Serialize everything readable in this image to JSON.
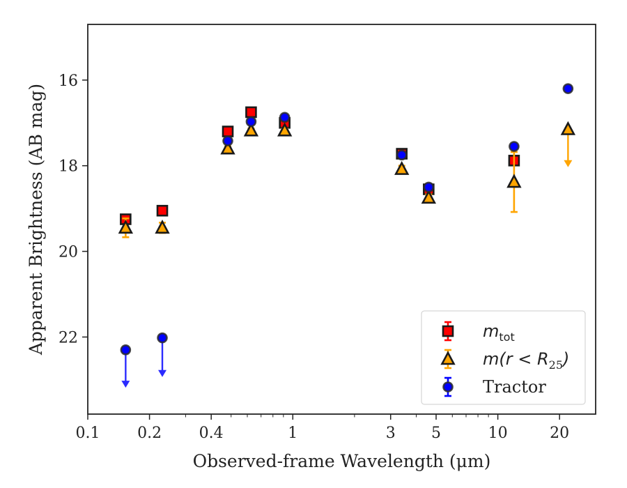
{
  "chart_data": {
    "type": "scatter",
    "xlabel": "Observed-frame Wavelength (μm)",
    "ylabel": "Apparent Brightness (AB mag)",
    "xscale": "log",
    "xlim": [
      0.1,
      30
    ],
    "ylim": [
      23.8,
      14.7
    ],
    "y_inverted": true,
    "x_ticks": [
      {
        "value": 0.1,
        "label": "0.1"
      },
      {
        "value": 0.2,
        "label": "0.2"
      },
      {
        "value": 0.4,
        "label": "0.4"
      },
      {
        "value": 1,
        "label": "1"
      },
      {
        "value": 3,
        "label": "3"
      },
      {
        "value": 5,
        "label": "5"
      },
      {
        "value": 10,
        "label": "10"
      },
      {
        "value": 20,
        "label": "20"
      }
    ],
    "y_ticks": [
      {
        "value": 16,
        "label": "16"
      },
      {
        "value": 18,
        "label": "18"
      },
      {
        "value": 20,
        "label": "20"
      },
      {
        "value": 22,
        "label": "22"
      }
    ],
    "grid": false,
    "legend_position": "lower-right",
    "series": [
      {
        "id": "mtot",
        "legend_label": "m",
        "legend_sub": "tot",
        "marker": "square",
        "color": "#ff0000",
        "edge_color": "#1a1a1a",
        "points": [
          {
            "x": 0.153,
            "y": 19.25,
            "err": 0.08
          },
          {
            "x": 0.231,
            "y": 19.05,
            "err": 0.08
          },
          {
            "x": 0.482,
            "y": 17.2,
            "err": 0.05
          },
          {
            "x": 0.626,
            "y": 16.75,
            "err": 0.05
          },
          {
            "x": 0.913,
            "y": 17.0,
            "err": 0.05
          },
          {
            "x": 3.4,
            "y": 17.72,
            "err": 0.05
          },
          {
            "x": 4.6,
            "y": 18.55,
            "err": 0.12
          },
          {
            "x": 12.0,
            "y": 17.88,
            "err": 0.08
          }
        ]
      },
      {
        "id": "mr25",
        "legend_label_pre": "m(r < R",
        "legend_sub": "25",
        "legend_label_post": ")",
        "marker": "triangle",
        "color": "#ffa500",
        "edge_color": "#1a1a1a",
        "points": [
          {
            "x": 0.153,
            "y": 19.45,
            "err": 0.22
          },
          {
            "x": 0.231,
            "y": 19.45,
            "err": 0.12
          },
          {
            "x": 0.482,
            "y": 17.6,
            "err": 0.05
          },
          {
            "x": 0.626,
            "y": 17.18,
            "err": 0.05
          },
          {
            "x": 0.913,
            "y": 17.18,
            "err": 0.05
          },
          {
            "x": 3.4,
            "y": 18.08,
            "err": 0.08
          },
          {
            "x": 4.6,
            "y": 18.75,
            "err": 0.08
          },
          {
            "x": 12.0,
            "y": 18.38,
            "err": 0.7
          },
          {
            "x": 22.0,
            "y": 17.15,
            "upper_limit": true,
            "arrow_to": 18.0
          }
        ]
      },
      {
        "id": "tractor",
        "legend_label": "Tractor",
        "marker": "circle",
        "color": "#0000ff",
        "edge_color": "#2b2b2b",
        "points": [
          {
            "x": 0.153,
            "y": 22.3,
            "upper_limit": true,
            "arrow_to": 23.15
          },
          {
            "x": 0.231,
            "y": 22.02,
            "upper_limit": true,
            "arrow_to": 22.9
          },
          {
            "x": 0.482,
            "y": 17.42,
            "err": 0.05
          },
          {
            "x": 0.626,
            "y": 16.97,
            "err": 0.05
          },
          {
            "x": 0.913,
            "y": 16.87,
            "err": 0.05
          },
          {
            "x": 3.4,
            "y": 17.75,
            "err": 0.05
          },
          {
            "x": 4.6,
            "y": 18.5,
            "err": 0.05
          },
          {
            "x": 12.0,
            "y": 17.55,
            "err": 0.05
          },
          {
            "x": 22.0,
            "y": 16.2,
            "err": 0.05
          }
        ]
      }
    ]
  }
}
